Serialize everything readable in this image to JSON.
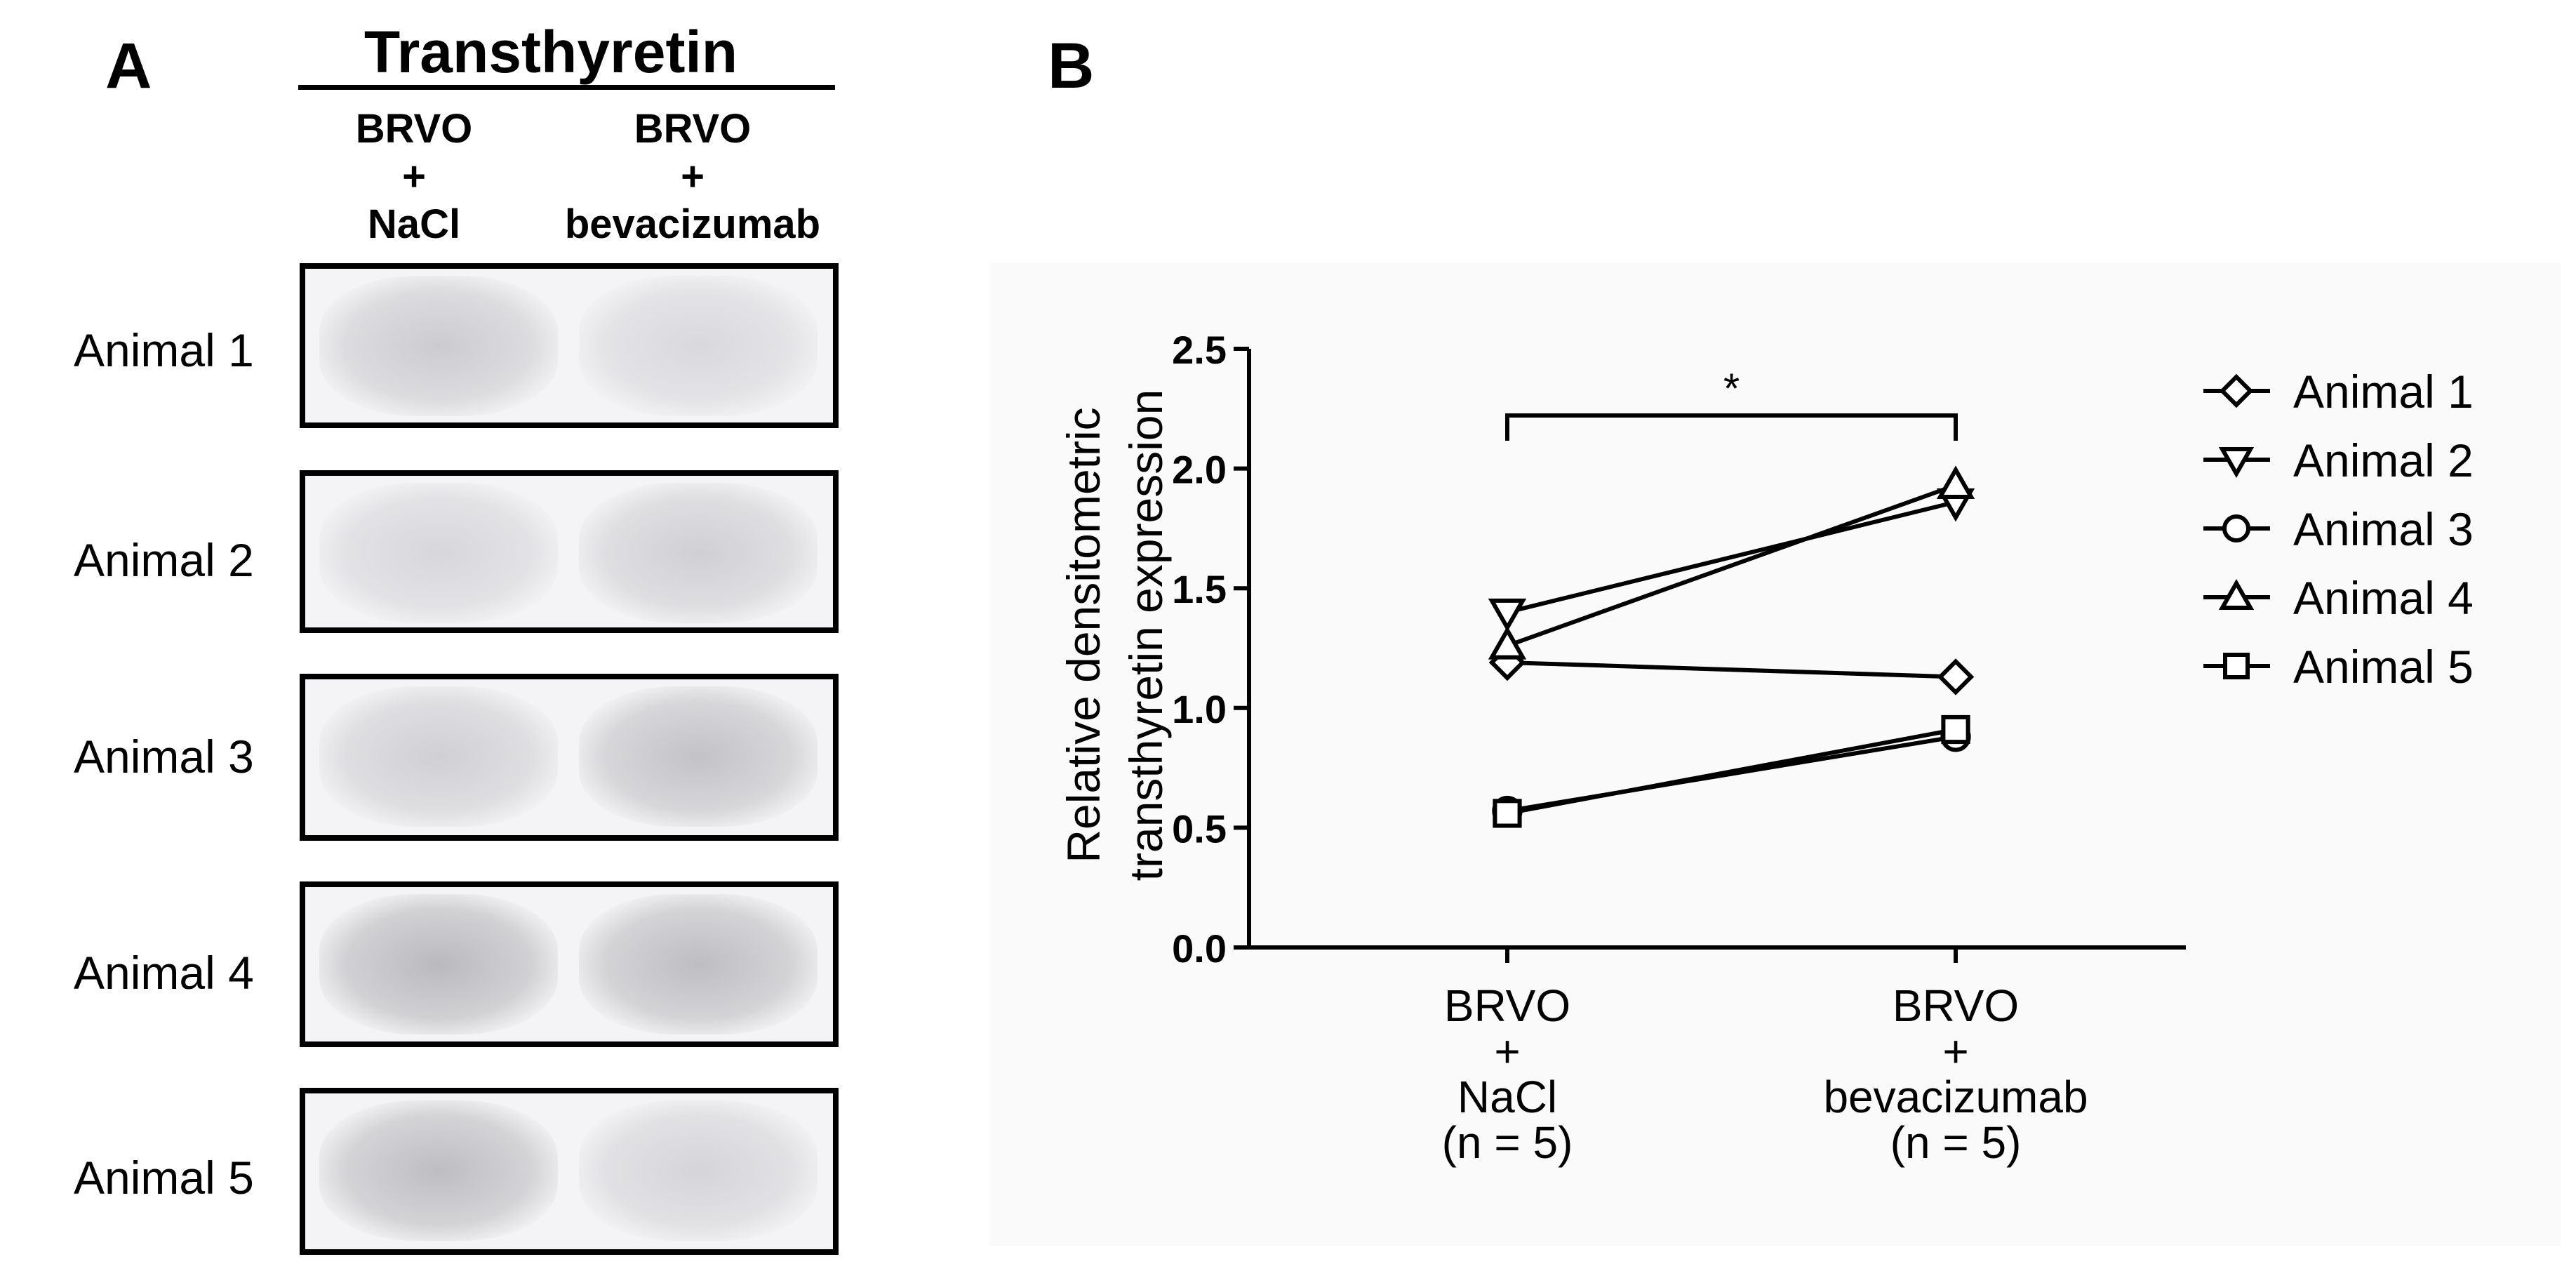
{
  "panel_a": {
    "letter": "A",
    "title": "Transthyretin",
    "columns": [
      {
        "line1": "BRVO",
        "line2": "+",
        "line3": "NaCl"
      },
      {
        "line1": "BRVO",
        "line2": "+",
        "line3": "bevacizumab"
      }
    ],
    "rows": [
      {
        "label": "Animal 1",
        "band_intensity": [
          0.35,
          0.2
        ]
      },
      {
        "label": "Animal 2",
        "band_intensity": [
          0.22,
          0.3
        ]
      },
      {
        "label": "Animal 3",
        "band_intensity": [
          0.3,
          0.45
        ]
      },
      {
        "label": "Animal 4",
        "band_intensity": [
          0.55,
          0.5
        ]
      },
      {
        "label": "Animal 5",
        "band_intensity": [
          0.5,
          0.25
        ]
      }
    ]
  },
  "panel_b": {
    "letter": "B",
    "ylabel_line1": "Relative densitometric",
    "ylabel_line2": "transthyretin expression",
    "significance": "*",
    "groups": [
      {
        "lines": [
          "BRVO",
          "+",
          "NaCl",
          "(n = 5)"
        ]
      },
      {
        "lines": [
          "BRVO",
          "+",
          "bevacizumab",
          "(n = 5)"
        ]
      }
    ]
  },
  "chart_data": {
    "type": "line",
    "categories": [
      "BRVO + NaCl (n = 5)",
      "BRVO + bevacizumab (n = 5)"
    ],
    "series": [
      {
        "name": "Animal 1",
        "marker": "diamond",
        "values": [
          1.19,
          1.13
        ]
      },
      {
        "name": "Animal 2",
        "marker": "triangle-down",
        "values": [
          1.4,
          1.86
        ]
      },
      {
        "name": "Animal 3",
        "marker": "circle",
        "values": [
          0.57,
          0.88
        ]
      },
      {
        "name": "Animal 4",
        "marker": "triangle-up",
        "values": [
          1.26,
          1.93
        ]
      },
      {
        "name": "Animal 5",
        "marker": "square",
        "values": [
          0.56,
          0.91
        ]
      }
    ],
    "ylim": [
      0.0,
      2.5
    ],
    "yticks": [
      "0.0",
      "0.5",
      "1.0",
      "1.5",
      "2.0",
      "2.5"
    ],
    "legend_position": "right",
    "grid": false
  }
}
